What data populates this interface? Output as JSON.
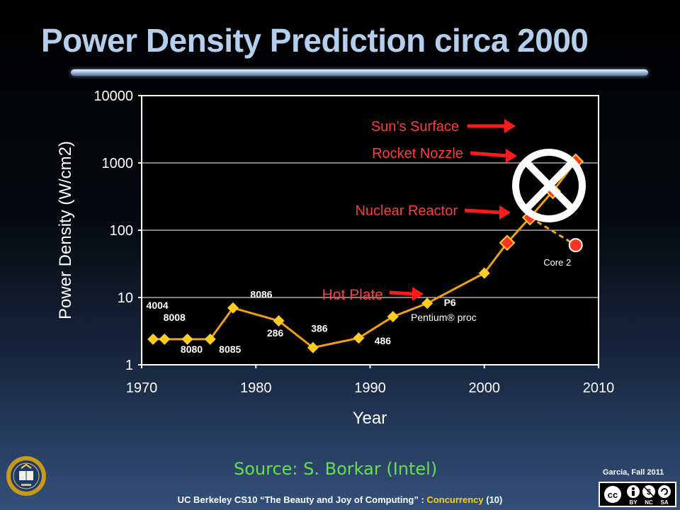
{
  "slide": {
    "title": "Power Density Prediction circa 2000",
    "source": "Source: S. Borkar (Intel)",
    "author": "Garcia, Fall 2011",
    "footer_prefix": "UC Berkeley CS10 “The Beauty and Joy of Computing” : ",
    "footer_topic": "Concurrency",
    "footer_page": " (10)",
    "license_labels": [
      "BY",
      "NC",
      "SA"
    ]
  },
  "chart_data": {
    "type": "line",
    "xlabel": "Year",
    "ylabel": "Power Density (W/cm2)",
    "yscale": "log",
    "xlim": [
      1970,
      2010
    ],
    "ylim": [
      1,
      10000
    ],
    "x_ticks": [
      "1970",
      "1980",
      "1990",
      "2000",
      "2010"
    ],
    "y_ticks": [
      "1",
      "10",
      "100",
      "1000",
      "10000"
    ],
    "grid": "horizontal",
    "colors": {
      "line": "#f0a010",
      "marker": "#ffcc22",
      "projected": "#ff3322",
      "arrow": "#ff1a1a",
      "label_red": "#ff3d3d"
    },
    "series": [
      {
        "points": [
          {
            "x": 1971,
            "y": 2.4,
            "label": "4004"
          },
          {
            "x": 1972,
            "y": 2.4,
            "label": "8008"
          },
          {
            "x": 1974,
            "y": 2.4,
            "label": "8080"
          },
          {
            "x": 1976,
            "y": 2.4,
            "label": "8085"
          },
          {
            "x": 1978,
            "y": 7,
            "label": "8086"
          },
          {
            "x": 1982,
            "y": 4.5,
            "label": "286"
          },
          {
            "x": 1985,
            "y": 1.8,
            "label": "386"
          },
          {
            "x": 1989,
            "y": 2.5,
            "label": "486"
          },
          {
            "x": 1992,
            "y": 5.2,
            "label": ""
          },
          {
            "x": 1995,
            "y": 8.2,
            "label": "P6"
          },
          {
            "x": 2000,
            "y": 23,
            "label": ""
          }
        ]
      },
      {
        "projected": true,
        "points": [
          {
            "x": 2002,
            "y": 65
          },
          {
            "x": 2004,
            "y": 155
          },
          {
            "x": 2006,
            "y": 380
          },
          {
            "x": 2008,
            "y": 1050
          }
        ]
      },
      {
        "dashed": true,
        "points": [
          {
            "x": 2004,
            "y": 155
          },
          {
            "x": 2008,
            "y": 60,
            "label": "Core 2"
          }
        ]
      }
    ],
    "annotations": [
      {
        "text": "Sun’s Surface"
      },
      {
        "text": "Rocket Nozzle"
      },
      {
        "text": "Nuclear Reactor"
      },
      {
        "text": "Hot Plate"
      },
      {
        "text": "Pentium® proc"
      }
    ]
  }
}
